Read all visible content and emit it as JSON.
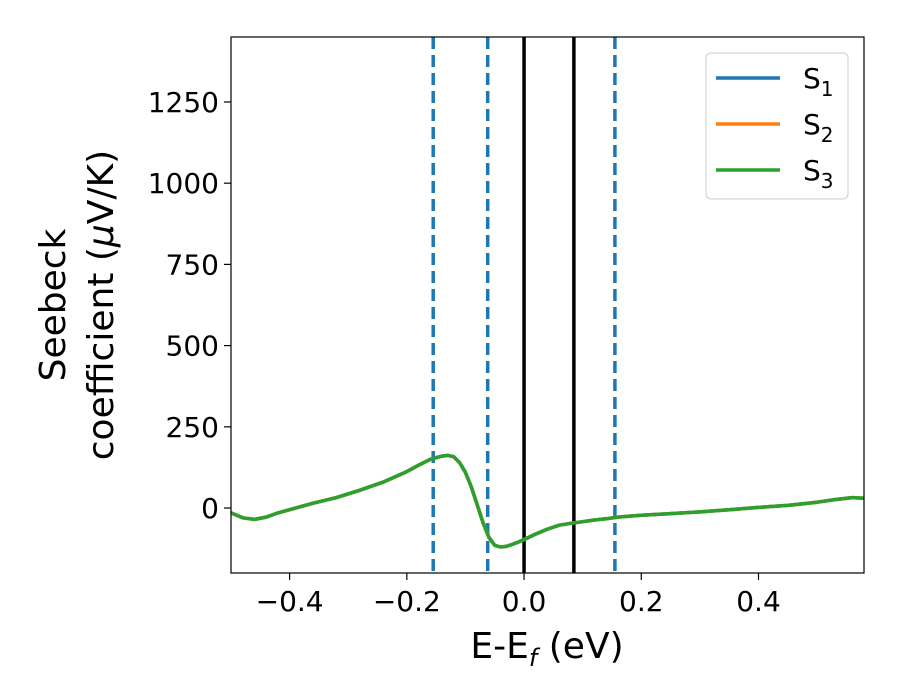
{
  "chart_data": {
    "type": "line",
    "title": "",
    "xlabel": {
      "main": "E-E",
      "sub": "f",
      "unit": " (eV)"
    },
    "ylabel": {
      "line1": "Seebeck",
      "line2_pre": "coefficient  (",
      "line2_mu": "μ",
      "line2_post": "V/K)"
    },
    "xlim": [
      -0.5,
      0.58
    ],
    "ylim": [
      -200,
      1450
    ],
    "xticks": [
      {
        "value": -0.4,
        "label": "−0.4"
      },
      {
        "value": -0.2,
        "label": "−0.2"
      },
      {
        "value": 0.0,
        "label": "0.0"
      },
      {
        "value": 0.2,
        "label": "0.2"
      },
      {
        "value": 0.4,
        "label": "0.4"
      }
    ],
    "yticks": [
      {
        "value": 0,
        "label": "0"
      },
      {
        "value": 250,
        "label": "250"
      },
      {
        "value": 500,
        "label": "500"
      },
      {
        "value": 750,
        "label": "750"
      },
      {
        "value": 1000,
        "label": "1000"
      },
      {
        "value": 1250,
        "label": "1250"
      }
    ],
    "grid": false,
    "legend_position": "top-right",
    "x": [
      -0.5,
      -0.48,
      -0.46,
      -0.44,
      -0.42,
      -0.4,
      -0.36,
      -0.32,
      -0.28,
      -0.24,
      -0.2,
      -0.18,
      -0.16,
      -0.14,
      -0.13,
      -0.12,
      -0.11,
      -0.1,
      -0.09,
      -0.08,
      -0.07,
      -0.06,
      -0.05,
      -0.04,
      -0.03,
      -0.02,
      -0.01,
      0.0,
      0.02,
      0.04,
      0.06,
      0.08,
      0.1,
      0.12,
      0.14,
      0.16,
      0.2,
      0.25,
      0.3,
      0.35,
      0.4,
      0.45,
      0.5,
      0.53,
      0.56,
      0.58
    ],
    "series": [
      {
        "name_base": "S",
        "name_sub": "1",
        "color": "#1f77b4",
        "y": [
          -15,
          -30,
          -35,
          -28,
          -15,
          -5,
          15,
          32,
          55,
          80,
          112,
          132,
          150,
          160,
          162,
          158,
          140,
          110,
          65,
          10,
          -45,
          -90,
          -115,
          -120,
          -118,
          -112,
          -105,
          -97,
          -80,
          -65,
          -53,
          -47,
          -42,
          -37,
          -33,
          -28,
          -22,
          -17,
          -12,
          -5,
          2,
          8,
          18,
          26,
          32,
          30
        ]
      },
      {
        "name_base": "S",
        "name_sub": "2",
        "color": "#ff7f0e",
        "y": [
          -15,
          -30,
          -35,
          -28,
          -15,
          -5,
          15,
          32,
          55,
          80,
          112,
          132,
          150,
          160,
          162,
          158,
          140,
          110,
          65,
          10,
          -45,
          -90,
          -115,
          -120,
          -118,
          -112,
          -105,
          -97,
          -80,
          -65,
          -53,
          -47,
          -42,
          -37,
          -33,
          -28,
          -22,
          -17,
          -12,
          -5,
          2,
          8,
          18,
          26,
          32,
          30
        ]
      },
      {
        "name_base": "S",
        "name_sub": "3",
        "color": "#2ca02c",
        "y": [
          -15,
          -30,
          -35,
          -28,
          -15,
          -5,
          15,
          32,
          55,
          80,
          112,
          132,
          150,
          160,
          162,
          158,
          140,
          110,
          65,
          10,
          -45,
          -90,
          -115,
          -120,
          -118,
          -112,
          -105,
          -97,
          -80,
          -65,
          -53,
          -47,
          -42,
          -37,
          -33,
          -28,
          -22,
          -17,
          -12,
          -5,
          2,
          8,
          18,
          26,
          32,
          30
        ]
      }
    ],
    "vlines": [
      {
        "x": -0.155,
        "style": "dashed",
        "color": "#1f77b4"
      },
      {
        "x": -0.062,
        "style": "dashed",
        "color": "#1f77b4"
      },
      {
        "x": 0.0,
        "style": "solid",
        "color": "#000000"
      },
      {
        "x": 0.085,
        "style": "solid",
        "color": "#000000"
      },
      {
        "x": 0.155,
        "style": "dashed",
        "color": "#1f77b4"
      }
    ]
  }
}
